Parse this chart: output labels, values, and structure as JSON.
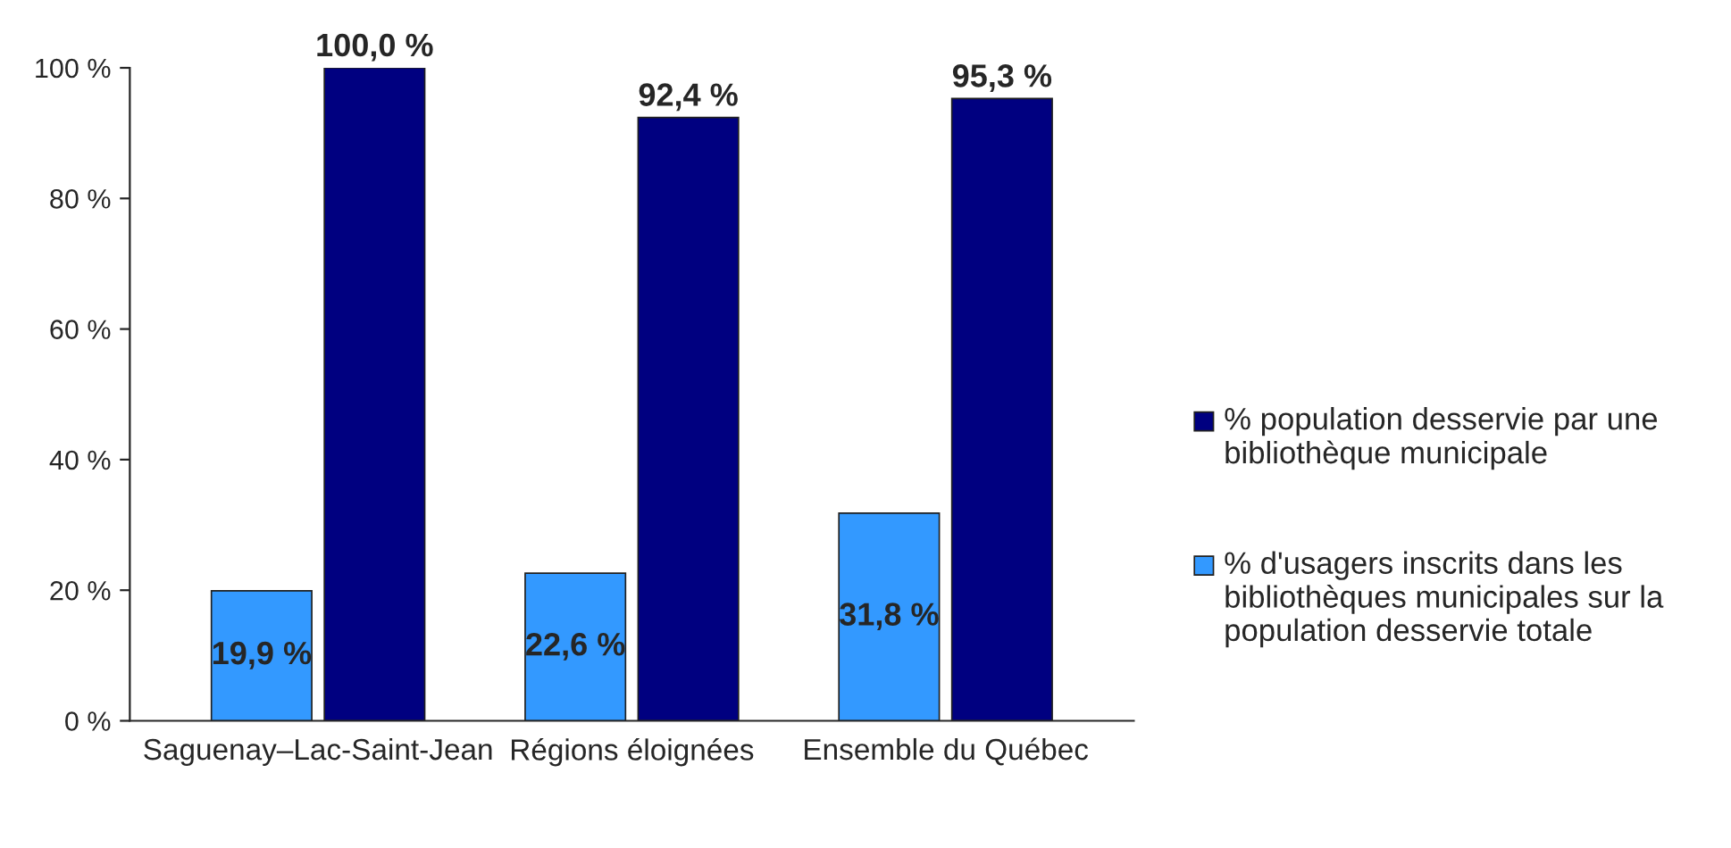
{
  "chart_data": {
    "type": "bar",
    "categories": [
      "Saguenay–Lac-Saint-Jean",
      "Régions éloignées",
      "Ensemble du Québec"
    ],
    "series": [
      {
        "name": "% population desservie par une bibliothèque municipale",
        "color": "#000080",
        "values": [
          100.0,
          92.4,
          95.3
        ],
        "value_labels": [
          "100,0 %",
          "92,4 %",
          "95,3 %"
        ]
      },
      {
        "name": "% d'usagers inscrits dans les bibliothèques municipales sur la population desservie totale",
        "color": "#3399ff",
        "values": [
          19.9,
          22.6,
          31.8
        ],
        "value_labels": [
          "19,9 %",
          "22,6 %",
          "31,8 %"
        ]
      }
    ],
    "ylim": [
      0,
      100
    ],
    "yticks": [
      {
        "value": 0,
        "label": "0 %"
      },
      {
        "value": 20,
        "label": "20 %"
      },
      {
        "value": 40,
        "label": "40 %"
      },
      {
        "value": 60,
        "label": "60 %"
      },
      {
        "value": 80,
        "label": "80 %"
      },
      {
        "value": 100,
        "label": "100 %"
      }
    ],
    "grid": false,
    "legend": "right"
  }
}
